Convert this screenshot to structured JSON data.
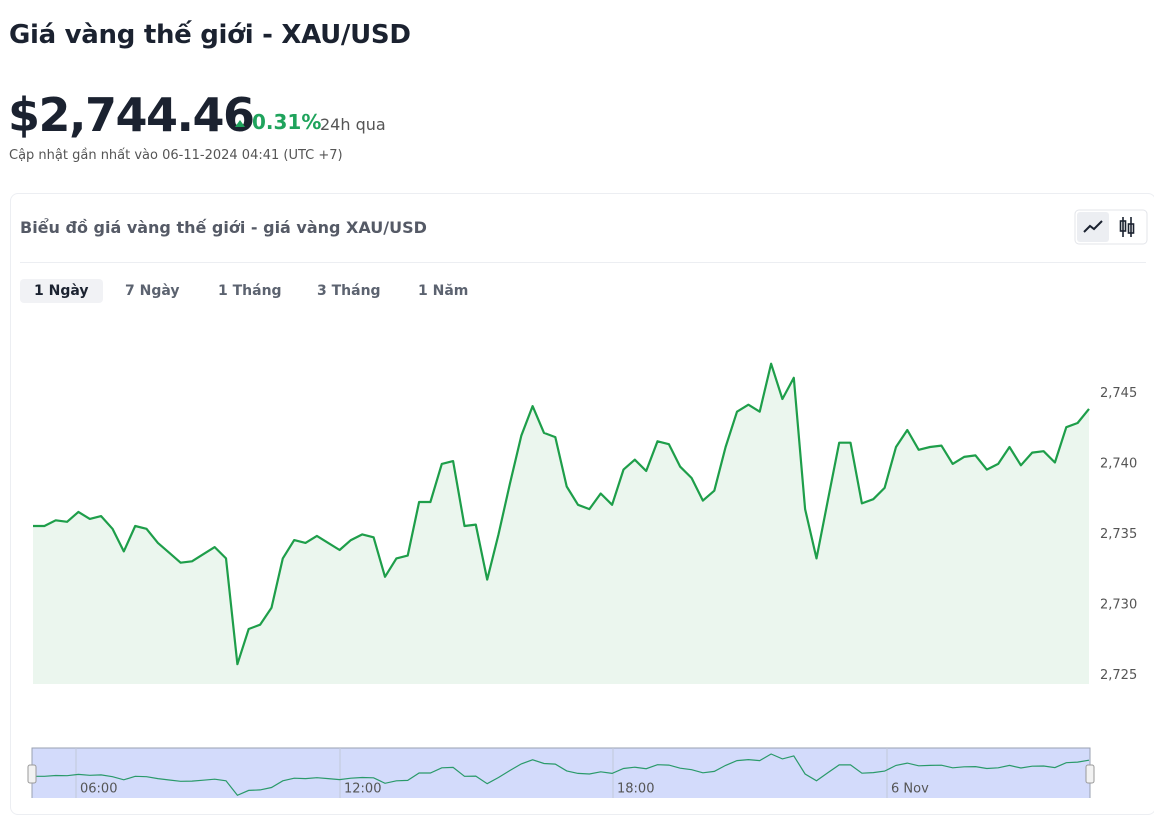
{
  "header": {
    "title": "Giá vàng thế giới - XAU/USD",
    "price": "$2,744.46",
    "change": "0.31%",
    "change_period": "24h qua",
    "updated": "Cập nhật gần nhất vào 06-11-2024 04:41 (UTC +7)"
  },
  "card": {
    "title": "Biểu đồ giá vàng thế giới - giá vàng XAU/USD",
    "tabs": [
      "1 Ngày",
      "7 Ngày",
      "1 Tháng",
      "3 Tháng",
      "1 Năm"
    ]
  },
  "chart_data": {
    "type": "line",
    "color": "#1e9e4a",
    "values": [
      2735.6,
      2735.6,
      2736.0,
      2735.9,
      2736.6,
      2736.1,
      2736.3,
      2735.4,
      2733.8,
      2735.6,
      2735.4,
      2734.4,
      2733.7,
      2733.0,
      2733.1,
      2733.6,
      2734.1,
      2733.3,
      2725.8,
      2728.3,
      2728.6,
      2729.8,
      2733.3,
      2734.6,
      2734.4,
      2734.9,
      2734.4,
      2733.9,
      2734.6,
      2735.0,
      2734.8,
      2732.0,
      2733.3,
      2733.5,
      2737.3,
      2737.3,
      2740.0,
      2740.2,
      2735.6,
      2735.7,
      2731.8,
      2735.0,
      2738.6,
      2742.0,
      2744.1,
      2742.2,
      2741.9,
      2738.4,
      2737.1,
      2736.8,
      2737.9,
      2737.1,
      2739.6,
      2740.3,
      2739.5,
      2741.6,
      2741.4,
      2739.8,
      2739.0,
      2737.4,
      2738.1,
      2741.2,
      2743.7,
      2744.2,
      2743.7,
      2747.1,
      2744.6,
      2746.1,
      2736.8,
      2733.3,
      2737.4,
      2741.5,
      2741.5,
      2737.2,
      2737.5,
      2738.3,
      2741.2,
      2742.4,
      2741.0,
      2741.2,
      2741.3,
      2740.0,
      2740.5,
      2740.6,
      2739.6,
      2740.0,
      2741.2,
      2739.9,
      2740.8,
      2740.9,
      2740.1,
      2742.6,
      2742.9,
      2743.9
    ],
    "ylim": [
      2724.4,
      2750.2
    ],
    "yticks": [
      {
        "value": 2725,
        "label": "2,725"
      },
      {
        "value": 2730,
        "label": "2,730"
      },
      {
        "value": 2735,
        "label": "2,735"
      },
      {
        "value": 2740,
        "label": "2,740"
      },
      {
        "value": 2745,
        "label": "2,745"
      }
    ],
    "navigator_labels": [
      "06:00",
      "12:00",
      "18:00",
      "6 Nov"
    ]
  }
}
